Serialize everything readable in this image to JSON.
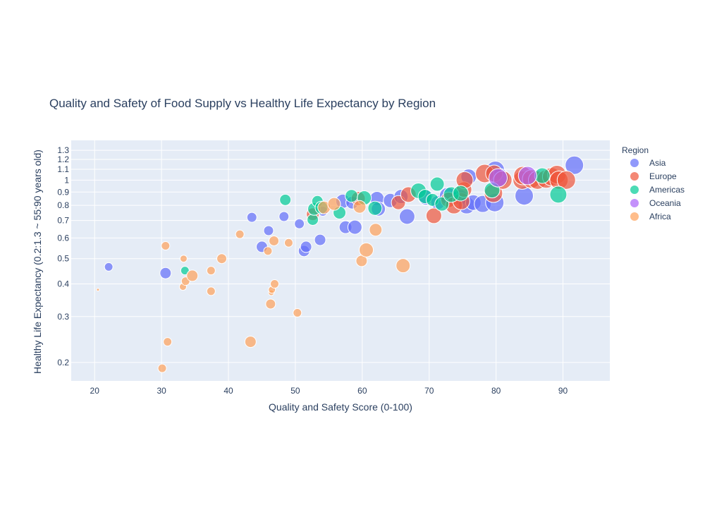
{
  "chart_data": {
    "type": "scatter",
    "title": "Quality and Safety of Food Supply vs Healthy Life Expectancy by Region",
    "xlabel": "Quality and Safety Score (0-100)",
    "ylabel": "Healthy Life Expectancy (0.2:1.3 ~ 55:90 years old)",
    "xlim": [
      16.5,
      97
    ],
    "ylim": [
      0.17,
      1.42
    ],
    "y_scale": "log",
    "grid": true,
    "x_ticks": [
      "20",
      "30",
      "40",
      "50",
      "60",
      "70",
      "80",
      "90"
    ],
    "y_ticks": [
      "0.2",
      "0.3",
      "0.4",
      "0.5",
      "0.6",
      "0.7",
      "0.8",
      "0.9",
      "1",
      "1.1",
      "1.2",
      "1.3"
    ],
    "legend": {
      "title": "Region",
      "placement": "right"
    },
    "series": [
      {
        "name": "Asia",
        "color": "#636efa",
        "points": [
          [
            22.1,
            0.465,
            6
          ],
          [
            30.6,
            0.44,
            8
          ],
          [
            43.5,
            0.72,
            7
          ],
          [
            45.0,
            0.555,
            8
          ],
          [
            46.0,
            0.64,
            7
          ],
          [
            48.3,
            0.725,
            7
          ],
          [
            50.6,
            0.68,
            7
          ],
          [
            51.3,
            0.535,
            8
          ],
          [
            51.6,
            0.555,
            8
          ],
          [
            53.7,
            0.59,
            8
          ],
          [
            54.1,
            0.76,
            7
          ],
          [
            57.1,
            0.83,
            10
          ],
          [
            57.5,
            0.66,
            9
          ],
          [
            58.5,
            0.82,
            9
          ],
          [
            58.9,
            0.66,
            10
          ],
          [
            62.2,
            0.85,
            10
          ],
          [
            62.4,
            0.775,
            10
          ],
          [
            64.2,
            0.835,
            10
          ],
          [
            65.8,
            0.865,
            10
          ],
          [
            66.7,
            0.725,
            11
          ],
          [
            69.5,
            0.86,
            11
          ],
          [
            71.3,
            0.82,
            10
          ],
          [
            72.8,
            0.87,
            12
          ],
          [
            74.6,
            0.86,
            11
          ],
          [
            75.6,
            0.8,
            12
          ],
          [
            75.9,
            1.03,
            11
          ],
          [
            76.6,
            0.82,
            11
          ],
          [
            78.0,
            0.81,
            12
          ],
          [
            79.8,
            0.82,
            13
          ],
          [
            79.9,
            1.09,
            13
          ],
          [
            80.6,
            1.02,
            13
          ],
          [
            84.2,
            0.87,
            13
          ],
          [
            91.7,
            1.14,
            13
          ]
        ]
      },
      {
        "name": "Europe",
        "color": "#ef553b",
        "points": [
          [
            52.6,
            0.74,
            9
          ],
          [
            59.4,
            0.85,
            10
          ],
          [
            65.4,
            0.82,
            10
          ],
          [
            66.9,
            0.88,
            11
          ],
          [
            70.7,
            0.73,
            11
          ],
          [
            72.9,
            0.84,
            11
          ],
          [
            73.7,
            0.8,
            12
          ],
          [
            74.8,
            0.83,
            12
          ],
          [
            75.2,
            0.92,
            11
          ],
          [
            75.3,
            1.0,
            12
          ],
          [
            78.3,
            1.06,
            13
          ],
          [
            79.6,
            0.89,
            13
          ],
          [
            79.7,
            1.06,
            12
          ],
          [
            81.0,
            1.0,
            13
          ],
          [
            83.9,
            1.0,
            13
          ],
          [
            84.0,
            1.04,
            13
          ],
          [
            85.3,
            1.01,
            13
          ],
          [
            86.2,
            1.0,
            13
          ],
          [
            87.5,
            1.01,
            13
          ],
          [
            88.3,
            1.03,
            13
          ],
          [
            89.1,
            1.05,
            13
          ],
          [
            89.4,
            1.0,
            13
          ],
          [
            90.5,
            1.0,
            13
          ]
        ]
      },
      {
        "name": "Americas",
        "color": "#00cc96",
        "points": [
          [
            33.5,
            0.45,
            6
          ],
          [
            48.5,
            0.84,
            8
          ],
          [
            52.6,
            0.705,
            8
          ],
          [
            52.8,
            0.775,
            9
          ],
          [
            53.3,
            0.83,
            8
          ],
          [
            53.9,
            0.785,
            9
          ],
          [
            56.6,
            0.75,
            9
          ],
          [
            58.4,
            0.87,
            9
          ],
          [
            60.3,
            0.855,
            10
          ],
          [
            61.9,
            0.78,
            10
          ],
          [
            68.4,
            0.91,
            11
          ],
          [
            69.4,
            0.865,
            10
          ],
          [
            70.5,
            0.84,
            9
          ],
          [
            71.2,
            0.965,
            10
          ],
          [
            71.9,
            0.81,
            10
          ],
          [
            73.3,
            0.88,
            11
          ],
          [
            74.7,
            0.89,
            11
          ],
          [
            79.4,
            0.915,
            11
          ],
          [
            86.9,
            1.04,
            11
          ],
          [
            89.3,
            0.88,
            12
          ]
        ]
      },
      {
        "name": "Oceania",
        "color": "#ab63fa",
        "points": [
          [
            80.3,
            1.02,
            13
          ],
          [
            84.7,
            1.04,
            13
          ]
        ]
      },
      {
        "name": "Africa",
        "color": "#ffa15a",
        "points": [
          [
            20.5,
            0.38,
            2
          ],
          [
            30.1,
            0.19,
            6
          ],
          [
            30.6,
            0.56,
            6
          ],
          [
            30.9,
            0.24,
            6
          ],
          [
            33.2,
            0.39,
            5
          ],
          [
            33.3,
            0.5,
            5
          ],
          [
            33.6,
            0.41,
            6
          ],
          [
            34.6,
            0.43,
            8
          ],
          [
            37.4,
            0.45,
            6
          ],
          [
            37.4,
            0.375,
            6
          ],
          [
            39.0,
            0.5,
            7
          ],
          [
            41.7,
            0.62,
            6
          ],
          [
            43.3,
            0.24,
            8
          ],
          [
            45.9,
            0.535,
            6
          ],
          [
            46.3,
            0.335,
            7
          ],
          [
            46.4,
            0.37,
            4
          ],
          [
            46.5,
            0.38,
            5
          ],
          [
            46.8,
            0.585,
            7
          ],
          [
            46.9,
            0.4,
            6
          ],
          [
            49.0,
            0.575,
            6
          ],
          [
            50.3,
            0.31,
            6
          ],
          [
            54.3,
            0.785,
            9
          ],
          [
            55.8,
            0.81,
            9
          ],
          [
            59.6,
            0.79,
            9
          ],
          [
            59.9,
            0.49,
            8
          ],
          [
            60.6,
            0.54,
            10
          ],
          [
            62.0,
            0.645,
            9
          ],
          [
            66.1,
            0.47,
            10
          ]
        ]
      }
    ]
  }
}
